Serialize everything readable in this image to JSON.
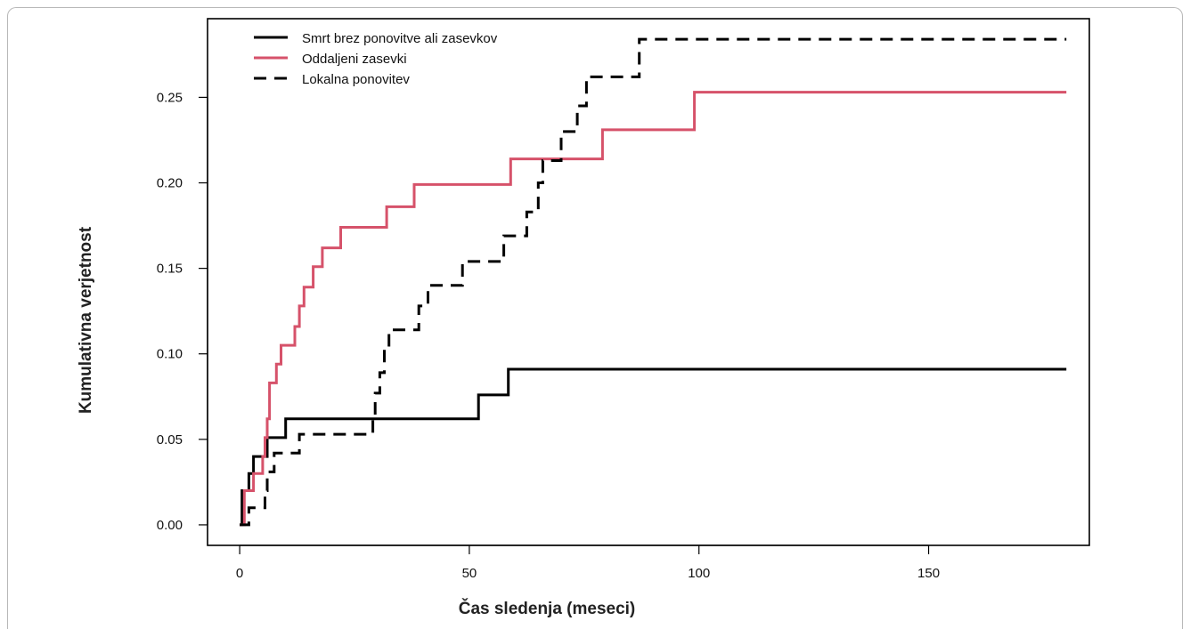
{
  "chart_data": {
    "type": "line",
    "step": true,
    "title": "",
    "xlabel": "Čas sledenja (meseci)",
    "ylabel": "Kumulativna verjetnost",
    "xlim": [
      -7,
      185
    ],
    "ylim": [
      -0.012,
      0.296
    ],
    "x_ticks": [
      0,
      50,
      100,
      150
    ],
    "x_tick_labels": [
      "0",
      "50",
      "100",
      "150"
    ],
    "y_ticks": [
      0,
      0.05,
      0.1,
      0.15,
      0.2,
      0.25
    ],
    "y_tick_labels": [
      "0.00",
      "0.05",
      "0.10",
      "0.15",
      "0.20",
      "0.25"
    ],
    "grid": false,
    "legend_position": "top-left",
    "series": [
      {
        "name": "Smrt brez ponovitve ali zasevkov",
        "color": "#000000",
        "dash": "solid",
        "points": [
          [
            0,
            0
          ],
          [
            0.5,
            0.02
          ],
          [
            2,
            0.03
          ],
          [
            3,
            0.04
          ],
          [
            6,
            0.051
          ],
          [
            10,
            0.062
          ],
          [
            52,
            0.076
          ],
          [
            58.5,
            0.091
          ],
          [
            180,
            0.091
          ]
        ]
      },
      {
        "name": "Oddaljeni zasevki",
        "color": "#d6526a",
        "dash": "solid",
        "points": [
          [
            0,
            0
          ],
          [
            1,
            0.02
          ],
          [
            3,
            0.03
          ],
          [
            5,
            0.04
          ],
          [
            5.5,
            0.051
          ],
          [
            6,
            0.062
          ],
          [
            6.5,
            0.083
          ],
          [
            8,
            0.094
          ],
          [
            9,
            0.105
          ],
          [
            12,
            0.116
          ],
          [
            13,
            0.128
          ],
          [
            14,
            0.139
          ],
          [
            16,
            0.151
          ],
          [
            18,
            0.162
          ],
          [
            22,
            0.174
          ],
          [
            32,
            0.186
          ],
          [
            38,
            0.199
          ],
          [
            59,
            0.214
          ],
          [
            79,
            0.231
          ],
          [
            99,
            0.253
          ],
          [
            180,
            0.253
          ]
        ]
      },
      {
        "name": "Lokalna ponovitev",
        "color": "#000000",
        "dash": "dashed",
        "points": [
          [
            0,
            0
          ],
          [
            2,
            0.01
          ],
          [
            5.5,
            0.02
          ],
          [
            6,
            0.031
          ],
          [
            7.5,
            0.042
          ],
          [
            13,
            0.053
          ],
          [
            29,
            0.064
          ],
          [
            29.5,
            0.077
          ],
          [
            30.5,
            0.089
          ],
          [
            31.5,
            0.103
          ],
          [
            32.5,
            0.114
          ],
          [
            39,
            0.128
          ],
          [
            41,
            0.14
          ],
          [
            48.5,
            0.154
          ],
          [
            57.5,
            0.169
          ],
          [
            62.5,
            0.183
          ],
          [
            65,
            0.2
          ],
          [
            66,
            0.213
          ],
          [
            70,
            0.23
          ],
          [
            73.5,
            0.245
          ],
          [
            75.5,
            0.262
          ],
          [
            87,
            0.284
          ],
          [
            180,
            0.284
          ]
        ]
      }
    ]
  }
}
